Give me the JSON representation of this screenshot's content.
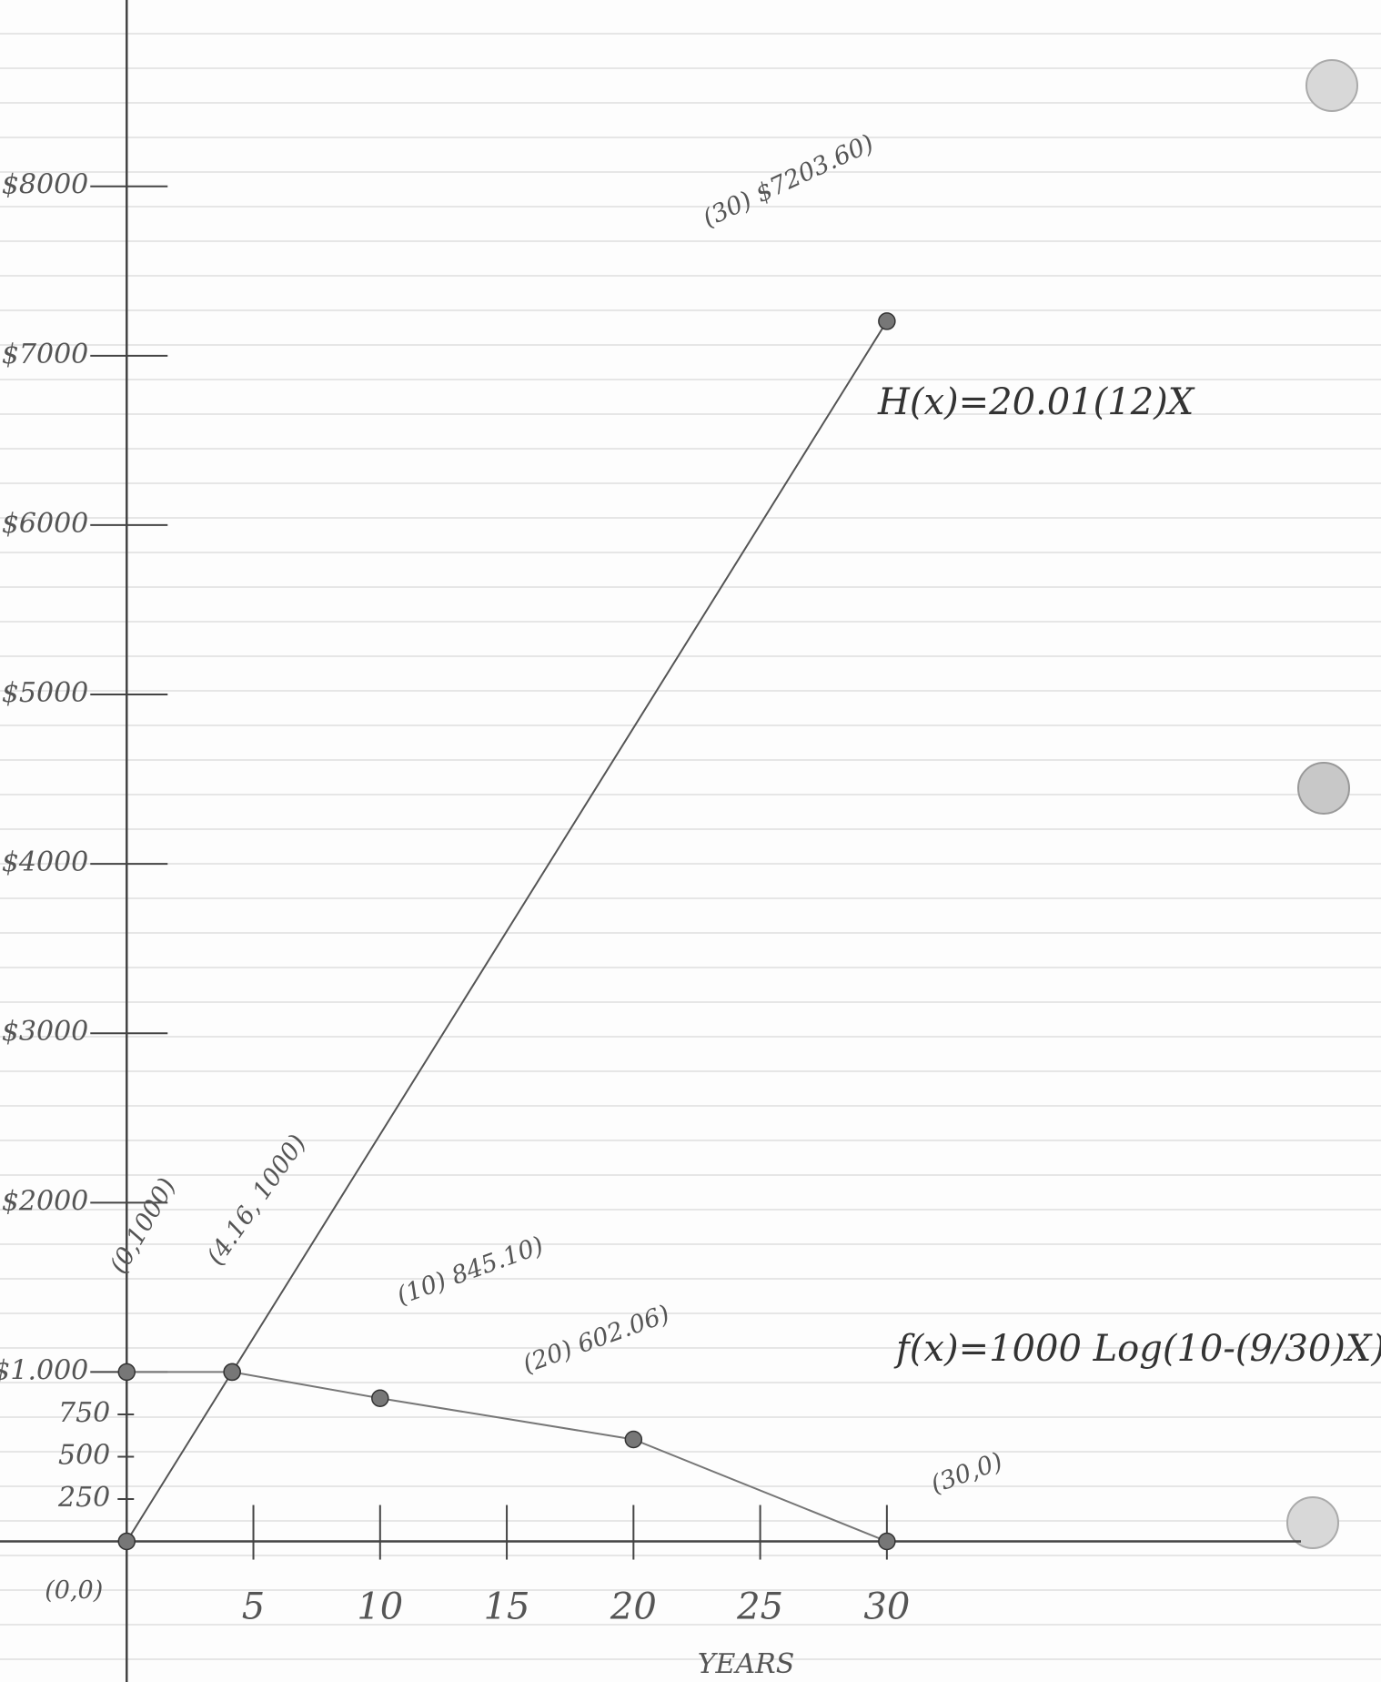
{
  "chart_data": {
    "type": "line",
    "x_label": "YEARS",
    "xlim": [
      -5,
      49.5
    ],
    "ylim": [
      -830,
      9100
    ],
    "xticks": [
      5,
      10,
      15,
      20,
      25,
      30
    ],
    "yticks": [
      250,
      500,
      750,
      {
        "value": 1000,
        "label": "$1.000"
      },
      {
        "value": 2000,
        "label": "$2000"
      },
      {
        "value": 3000,
        "label": "$3000"
      },
      {
        "value": 4000,
        "label": "$4000"
      },
      {
        "value": 5000,
        "label": "$5000"
      },
      {
        "value": 6000,
        "label": "$6000"
      },
      {
        "value": 7000,
        "label": "$7000"
      },
      {
        "value": 8000,
        "label": "$8000"
      }
    ],
    "series": [
      {
        "name": "H(x)=20.01(12)X",
        "color": "#555555",
        "x": [
          0,
          4.16,
          30
        ],
        "values": [
          0,
          1000,
          7203.6
        ],
        "value_labels": [
          "(0,0)",
          "(4.16, 1000)",
          "(30) $7203.60)"
        ]
      },
      {
        "name": "f(x)=1000 Log(10-(9/30)X)",
        "color": "#777777",
        "x": [
          0,
          4.16,
          10,
          20,
          30
        ],
        "values": [
          1000,
          1000,
          845.1,
          602.06,
          0
        ],
        "value_labels": [
          "(0,1000)",
          null,
          "(10) 845.10)",
          "(20) 602.06)",
          "(30,0)"
        ]
      }
    ]
  }
}
